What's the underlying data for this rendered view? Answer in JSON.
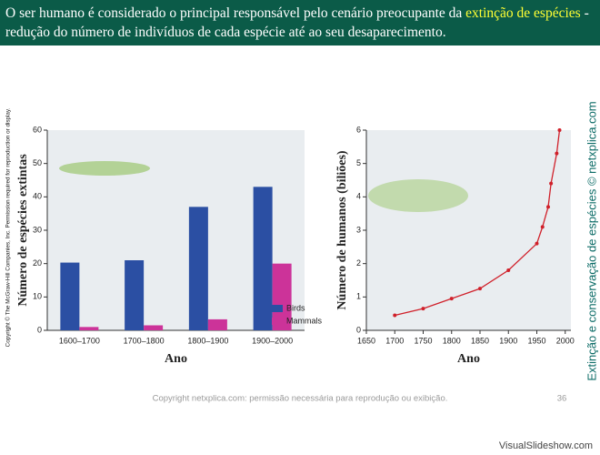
{
  "header": {
    "before": "O ser humano é considerado o principal responsável pelo cenário preocupante da ",
    "highlight": "extinção de espécies",
    "after": " - redução do número de indivíduos de cada espécie até ao seu desaparecimento."
  },
  "chart_data": [
    {
      "type": "bar",
      "ylabel": "Número de espécies extintas",
      "xlabel": "Ano",
      "categories": [
        "1600–1700",
        "1700–1800",
        "1800–1900",
        "1900–2000"
      ],
      "series": [
        {
          "name": "Birds",
          "color": "#2b4fa3",
          "values": [
            20.3,
            21,
            37,
            43
          ]
        },
        {
          "name": "Mammals",
          "color": "#cc3399",
          "values": [
            1,
            1.5,
            3.3,
            20
          ]
        }
      ],
      "ylim": [
        0,
        60
      ],
      "yticks": [
        0,
        10,
        20,
        30,
        40,
        50,
        60
      ],
      "legend": "lower right"
    },
    {
      "type": "line",
      "ylabel": "Número de humanos (biliões)",
      "xlabel": "Ano",
      "x": [
        1700,
        1750,
        1800,
        1850,
        1900,
        1950,
        1960,
        1970,
        1975,
        1985,
        1990
      ],
      "series": [
        {
          "color": "#d0202a",
          "values": [
            0.45,
            0.65,
            0.95,
            1.25,
            1.8,
            2.6,
            3.1,
            3.7,
            4.4,
            5.3,
            6
          ]
        }
      ],
      "xlim": [
        1650,
        2010
      ],
      "xticks": [
        1650,
        1700,
        1750,
        1800,
        1850,
        1900,
        1950,
        2000
      ],
      "ylim": [
        0,
        6
      ],
      "yticks": [
        0,
        1,
        2,
        3,
        4,
        5,
        6
      ]
    }
  ],
  "notes": {
    "left_copyright": "Copyright © The McGraw-Hill Companies, Inc. Permission required for reproduction or display.",
    "right_side": "Extinção e conservação de espécies © netxplica.com",
    "footer": "Copyright netxplica.com: permissão necessária para reprodução ou exibição.",
    "page": "36",
    "brand": "VisualSlideshow.com"
  }
}
